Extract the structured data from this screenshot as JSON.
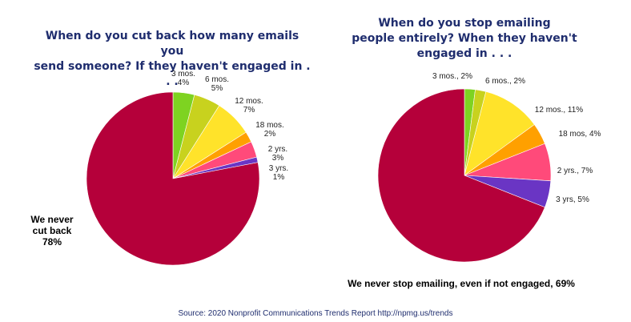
{
  "chart_data": [
    {
      "type": "pie",
      "title": "When do you cut back how many emails you\nsend someone? If they haven't engaged in . . .",
      "slices": [
        {
          "label": [
            "3 mos.",
            "4%"
          ],
          "value": 4,
          "color": "#7ed321"
        },
        {
          "label": [
            "6 mos.",
            "5%"
          ],
          "value": 5,
          "color": "#c8d21e"
        },
        {
          "label": [
            "12 mos.",
            "7%"
          ],
          "value": 7,
          "color": "#ffe32a"
        },
        {
          "label": [
            "18 mos.",
            "2%"
          ],
          "value": 2,
          "color": "#ffa000"
        },
        {
          "label": [
            "2 yrs.",
            "3%"
          ],
          "value": 3,
          "color": "#ff4a7a"
        },
        {
          "label": [
            "3 yrs.",
            "1%"
          ],
          "value": 1,
          "color": "#6a35c4"
        },
        {
          "label": [
            "We never",
            "cut back",
            "78%"
          ],
          "value": 78,
          "color": "#b5003a",
          "emphasis": true
        }
      ]
    },
    {
      "type": "pie",
      "title": "When do you stop emailing\npeople entirely? When they haven't\nengaged in . . .",
      "slices": [
        {
          "label": [
            "3 mos., 2%"
          ],
          "value": 2,
          "color": "#7ed321"
        },
        {
          "label": [
            "6 mos., 2%"
          ],
          "value": 2,
          "color": "#c8d21e"
        },
        {
          "label": [
            "12 mos., 11%"
          ],
          "value": 11,
          "color": "#ffe32a"
        },
        {
          "label": [
            "18 mos, 4%"
          ],
          "value": 4,
          "color": "#ffa000"
        },
        {
          "label": [
            "2 yrs., 7%"
          ],
          "value": 7,
          "color": "#ff4a7a"
        },
        {
          "label": [
            "3 yrs, 5%"
          ],
          "value": 5,
          "color": "#6a35c4"
        },
        {
          "label": [
            "We never stop emailing, even if not engaged, 69%"
          ],
          "value": 69,
          "color": "#b5003a",
          "emphasis": true
        }
      ]
    }
  ],
  "source": "Source: 2020 Nonprofit Communications Trends Report  http://npmg.us/trends"
}
